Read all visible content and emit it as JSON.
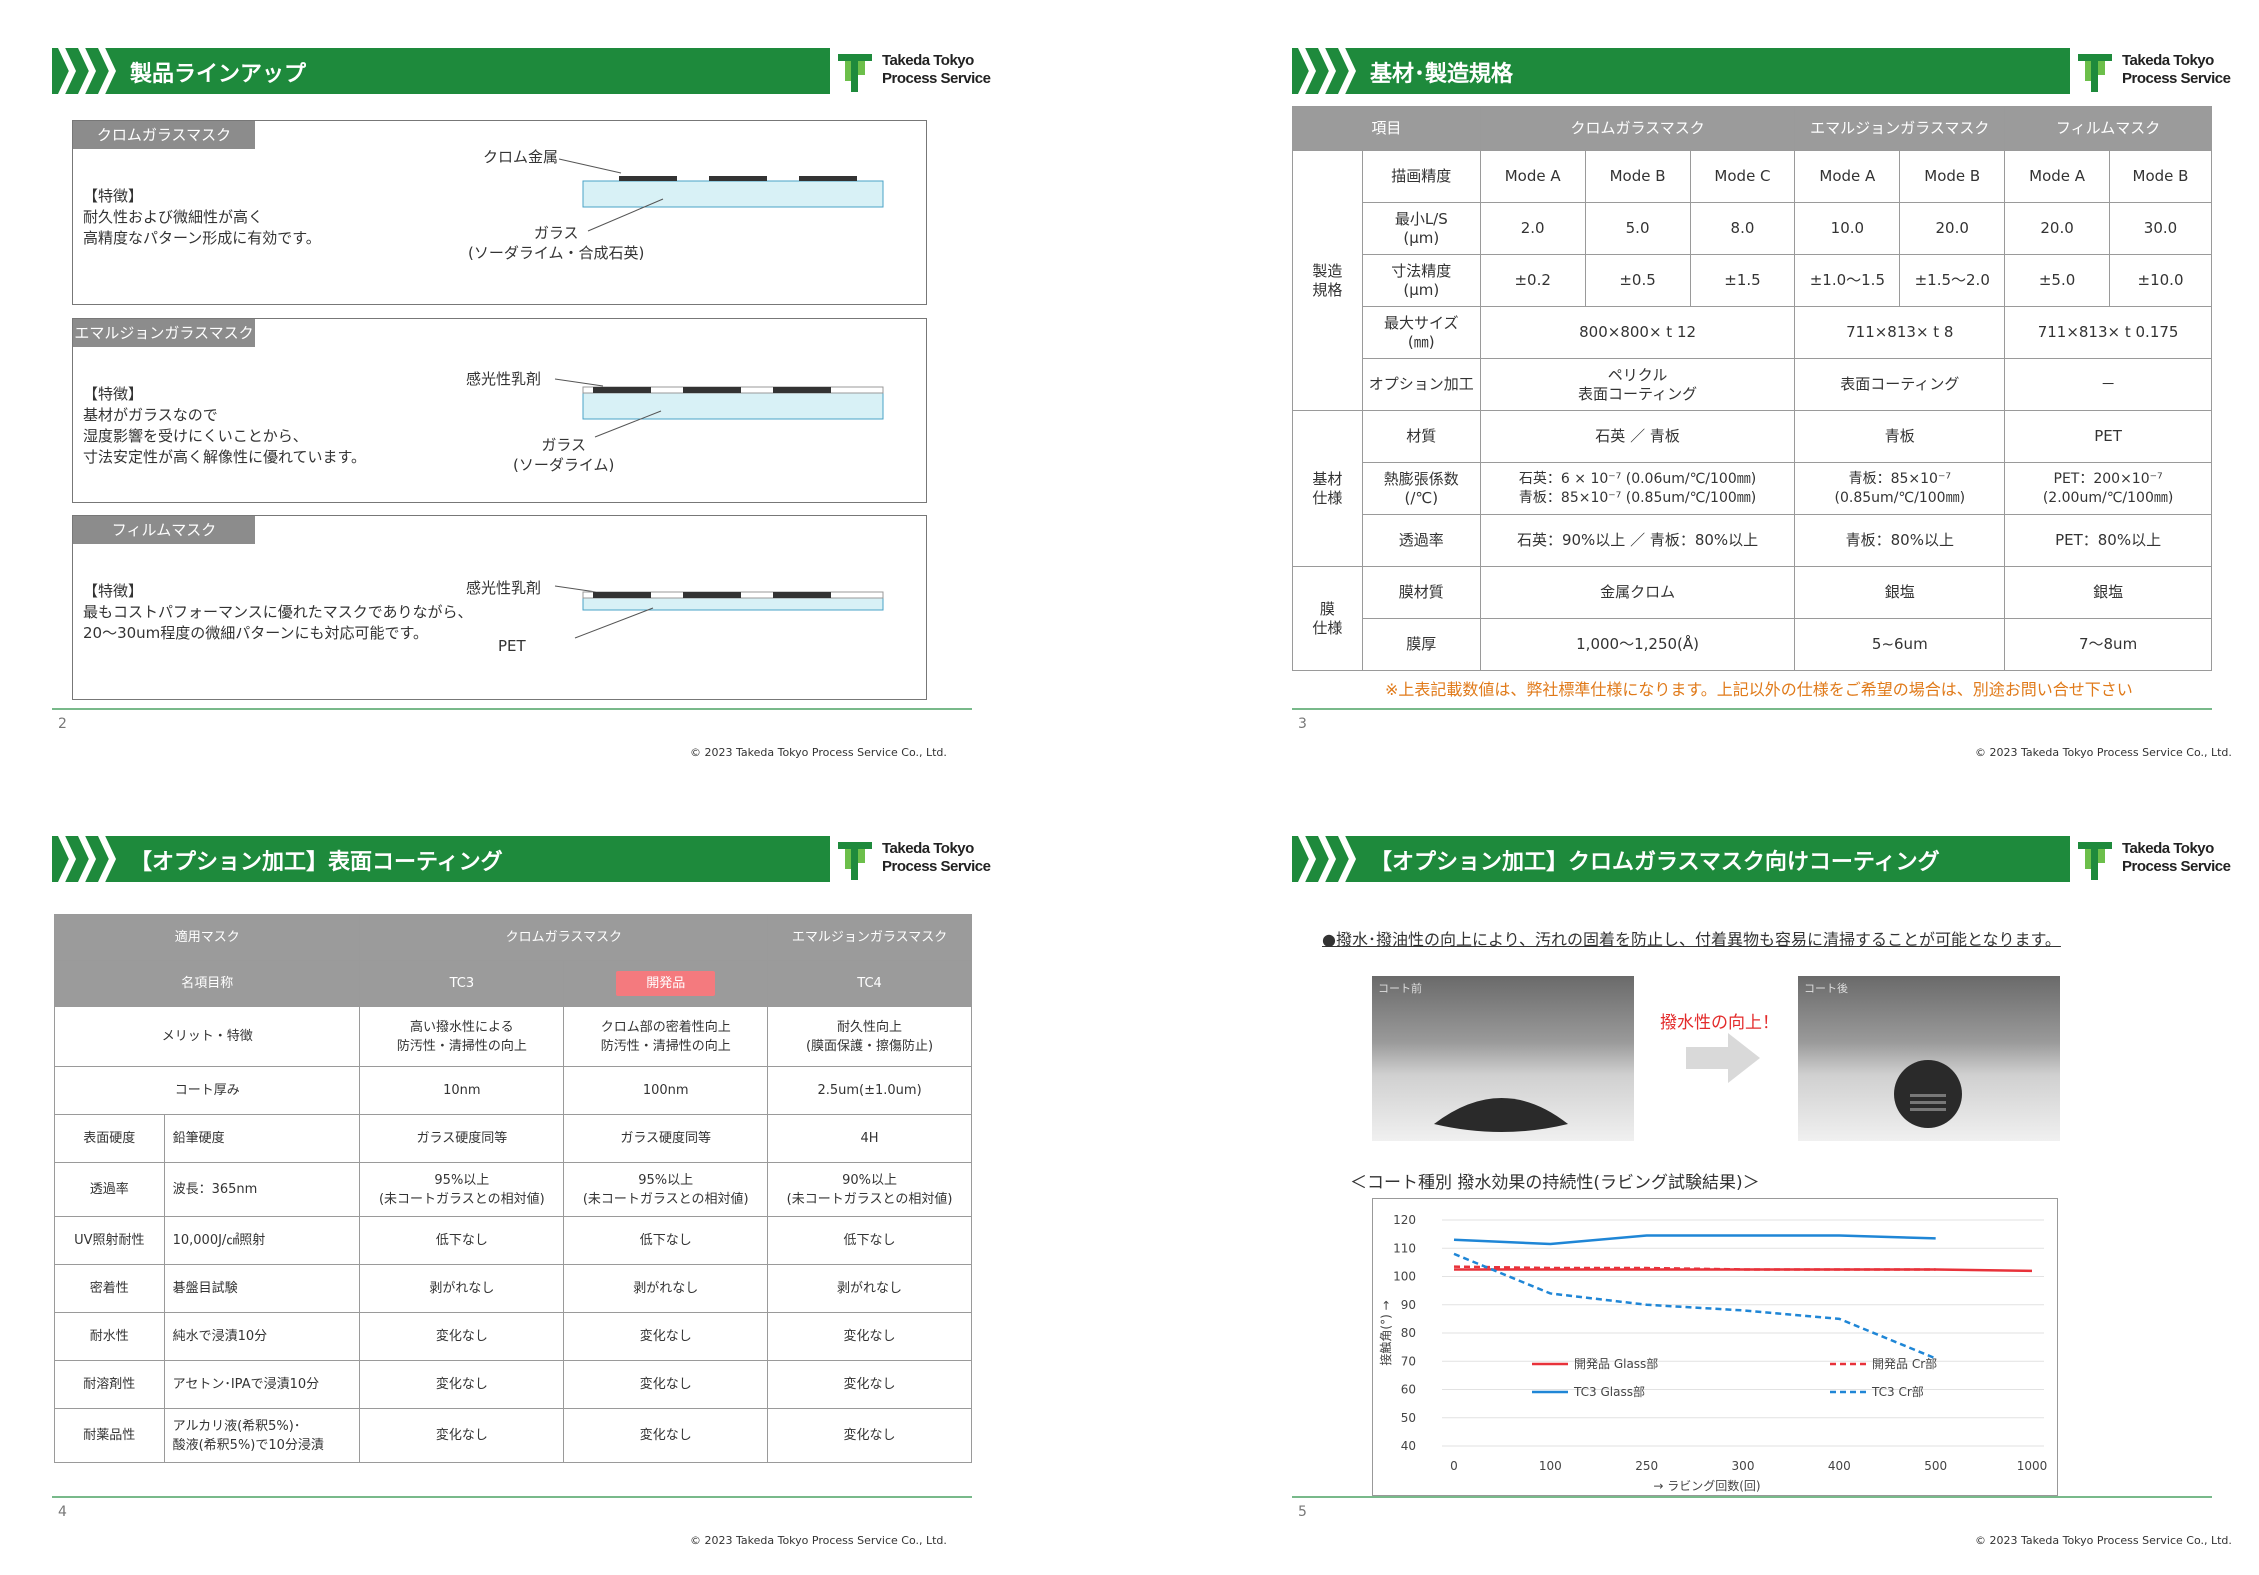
{
  "copyright": "© 2023 Takeda Tokyo Process Service Co., Ltd.",
  "logo": {
    "line1": "Takeda Tokyo",
    "line2": "Process Service"
  },
  "slide2": {
    "title": "製品ラインアップ",
    "page": "2",
    "boxes": [
      {
        "label": "クロムガラスマスク",
        "text": "【特徴】\n耐久性および微細性が高く\n高精度なパターン形成に有効です。",
        "callout_top": "クロム金属",
        "callout_bottom": "ガラス\n(ソーダライム・合成石英)"
      },
      {
        "label": "エマルジョンガラスマスク",
        "text": "【特徴】\n基材がガラスなので\n湿度影響を受けにくいことから、\n寸法安定性が高く解像性に優れています。",
        "callout_top": "感光性乳剤",
        "callout_bottom": "ガラス\n(ソーダライム)"
      },
      {
        "label": "フィルムマスク",
        "text": "【特徴】\n最もコストパフォーマンスに優れたマスクでありながら、\n20～30um程度の微細パターンにも対応可能です。",
        "callout_top": "感光性乳剤",
        "callout_bottom": "PET"
      }
    ]
  },
  "slide3": {
    "title": "基材･製造規格",
    "page": "3",
    "head": [
      "項目",
      "クロムガラスマスク",
      "エマルジョンガラスマスク",
      "フィルムマスク"
    ],
    "groups": [
      "製造\n規格",
      "基材\n仕様",
      "膜\n仕様"
    ],
    "rows": {
      "r1": [
        "描画精度",
        "Mode A",
        "Mode B",
        "Mode C",
        "Mode A",
        "Mode B",
        "Mode A",
        "Mode B"
      ],
      "r2": [
        "最小L/S\n(μm)",
        "2.0",
        "5.0",
        "8.0",
        "10.0",
        "20.0",
        "20.0",
        "30.0"
      ],
      "r3": [
        "寸法精度\n(μm)",
        "±0.2",
        "±0.5",
        "±1.5",
        "±1.0～1.5",
        "±1.5～2.0",
        "±5.0",
        "±10.0"
      ],
      "r4": [
        "最大サイズ\n(㎜)",
        "800×800× t 12",
        "711×813× t 8",
        "711×813× t 0.175"
      ],
      "r5": [
        "オプション加工",
        "ペリクル\n表面コーティング",
        "表面コーティング",
        "－"
      ],
      "r6": [
        "材質",
        "石英 ／ 青板",
        "青板",
        "PET"
      ],
      "r7": [
        "熱膨張係数\n(/℃)",
        "石英：6 × 10⁻⁷ (0.06um/℃/100㎜)\n青板：85×10⁻⁷ (0.85um/℃/100㎜)",
        "青板：85×10⁻⁷\n(0.85um/℃/100㎜)",
        "PET：200×10⁻⁷\n(2.00um/℃/100㎜)"
      ],
      "r8": [
        "透過率",
        "石英：90%以上 ／ 青板：80%以上",
        "青板：80%以上",
        "PET：80%以上"
      ],
      "r9": [
        "膜材質",
        "金属クロム",
        "銀塩",
        "銀塩"
      ],
      "r10": [
        "膜厚",
        "1,000～1,250(Å)",
        "5~6um",
        "7～8um"
      ]
    },
    "note": "※上表記載数値は、弊社標準仕様になります。上記以外の仕様をご希望の場合は、別途お問い合せ下さい"
  },
  "slide4": {
    "title": "【オプション加工】表面コーティング",
    "page": "4",
    "head1": [
      "適用マスク",
      "クロムガラスマスク",
      "エマルジョンガラスマスク"
    ],
    "head2": [
      "名項目称",
      "TC3",
      "開発品",
      "TC4"
    ],
    "rows": [
      {
        "a": "メリット・特徴",
        "b": "",
        "c": [
          "高い撥水性による\n防汚性・清掃性の向上",
          "クロム部の密着性向上\n防汚性・清掃性の向上",
          "耐久性向上\n(膜面保護・擦傷防止)"
        ]
      },
      {
        "a": "コート厚み",
        "b": "",
        "c": [
          "10nm",
          "100nm",
          "2.5um(±1.0um)"
        ]
      },
      {
        "a": "表面硬度",
        "b": "鉛筆硬度",
        "c": [
          "ガラス硬度同等",
          "ガラス硬度同等",
          "4H"
        ]
      },
      {
        "a": "透過率",
        "b": "波長：365nm",
        "c": [
          "95%以上\n(未コートガラスとの相対値)",
          "95%以上\n(未コートガラスとの相対値)",
          "90%以上\n(未コートガラスとの相対値)"
        ]
      },
      {
        "a": "UV照射耐性",
        "b": "10,000J/㎠照射",
        "c": [
          "低下なし",
          "低下なし",
          "低下なし"
        ]
      },
      {
        "a": "密着性",
        "b": "碁盤目試験",
        "c": [
          "剥がれなし",
          "剥がれなし",
          "剥がれなし"
        ]
      },
      {
        "a": "耐水性",
        "b": "純水で浸漬10分",
        "c": [
          "変化なし",
          "変化なし",
          "変化なし"
        ]
      },
      {
        "a": "耐溶剤性",
        "b": "アセトン･IPAで浸漬10分",
        "c": [
          "変化なし",
          "変化なし",
          "変化なし"
        ]
      },
      {
        "a": "耐薬品性",
        "b": "アルカリ液(希釈5%)･\n酸液(希釈5%)で10分浸漬",
        "c": [
          "変化なし",
          "変化なし",
          "変化なし"
        ]
      }
    ]
  },
  "slide5": {
    "title": "【オプション加工】クロムガラスマスク向けコーティング",
    "page": "5",
    "bullet": "●撥水･撥油性の向上により、汚れの固着を防止し、付着異物も容易に清掃することが可能となります。",
    "photo_before": "コート前",
    "photo_after": "コート後",
    "improve": "撥水性の向上！",
    "chart_title": "＜コート種別 撥水効果の持続性(ラビング試験結果)＞",
    "colors": {
      "red": "#e8323a",
      "blue": "#1f86d6"
    }
  },
  "chart_data": {
    "type": "line",
    "categories": [
      "0",
      "100",
      "250",
      "300",
      "400",
      "500",
      "1000"
    ],
    "xlabel": "→ ラビング回数(回)",
    "ylabel": "接触角(°) →",
    "ylim": [
      40,
      120
    ],
    "yticks": [
      40,
      50,
      60,
      70,
      80,
      90,
      100,
      110,
      120
    ],
    "series": [
      {
        "name": "開発品 Glass部",
        "color": "#e8323a",
        "dash": false,
        "values": [
          102.5,
          102.5,
          102.5,
          102.5,
          102.5,
          102.5,
          102
        ]
      },
      {
        "name": "開発品 Cr部",
        "color": "#e8323a",
        "dash": true,
        "values": [
          103.5,
          103,
          103,
          102.5,
          102.5,
          102.5,
          null
        ]
      },
      {
        "name": "TC3 Glass部",
        "color": "#1f86d6",
        "dash": false,
        "values": [
          113,
          111.5,
          114.5,
          114.5,
          114.5,
          113.5,
          null
        ]
      },
      {
        "name": "TC3 Cr部",
        "color": "#1f86d6",
        "dash": true,
        "values": [
          108,
          94,
          90,
          88,
          85,
          71,
          null
        ]
      }
    ]
  }
}
